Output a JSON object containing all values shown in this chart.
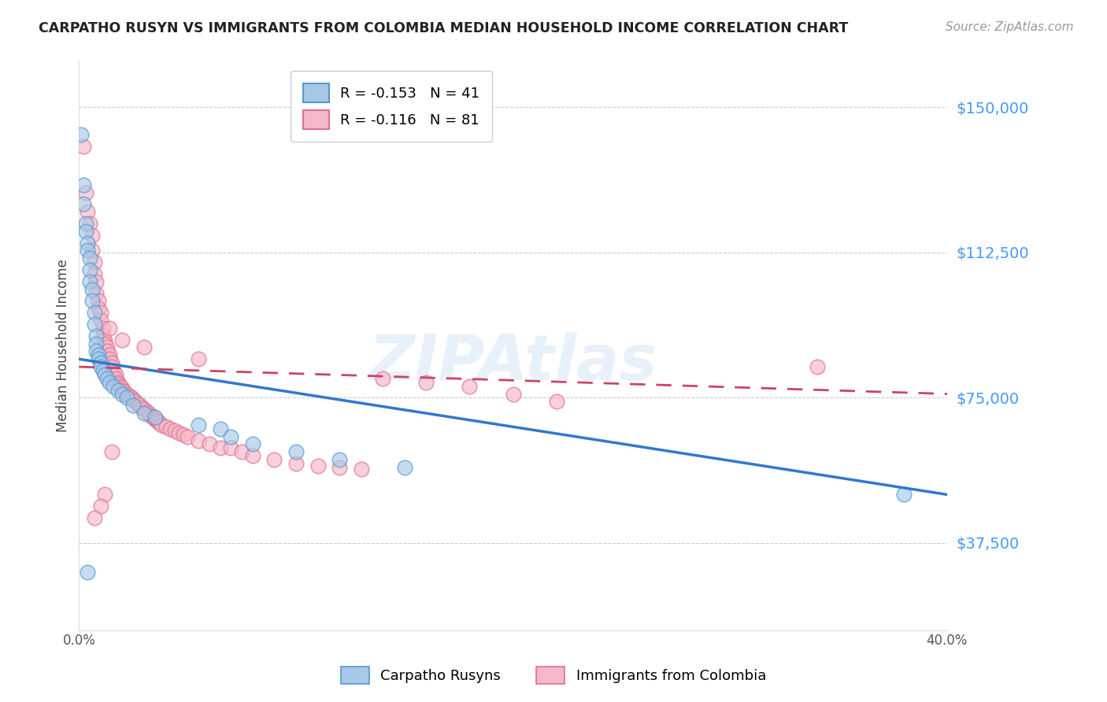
{
  "title": "CARPATHO RUSYN VS IMMIGRANTS FROM COLOMBIA MEDIAN HOUSEHOLD INCOME CORRELATION CHART",
  "source": "Source: ZipAtlas.com",
  "ylabel": "Median Household Income",
  "y_ticks": [
    37500,
    75000,
    112500,
    150000
  ],
  "y_tick_labels": [
    "$37,500",
    "$75,000",
    "$112,500",
    "$150,000"
  ],
  "x_min": 0.0,
  "x_max": 0.4,
  "y_min": 15000,
  "y_max": 162000,
  "series1_label": "Carpatho Rusyns",
  "series2_label": "Immigrants from Colombia",
  "series1_color": "#a8c8e8",
  "series2_color": "#f5b8c8",
  "series1_edge_color": "#5599cc",
  "series2_edge_color": "#e07090",
  "trendline1_color": "#3377cc",
  "trendline2_color": "#cc4466",
  "watermark": "ZIPAtlas",
  "background_color": "#ffffff",
  "legend1_label": "R = -0.153   N = 41",
  "legend2_label": "R = -0.116   N = 81",
  "trendline1_x": [
    0.0,
    0.4
  ],
  "trendline1_y": [
    85000,
    50000
  ],
  "trendline2_x": [
    0.0,
    0.4
  ],
  "trendline2_y": [
    83000,
    76000
  ],
  "series1_x": [
    0.001,
    0.002,
    0.002,
    0.003,
    0.003,
    0.004,
    0.004,
    0.005,
    0.005,
    0.005,
    0.006,
    0.006,
    0.007,
    0.007,
    0.008,
    0.008,
    0.008,
    0.009,
    0.009,
    0.01,
    0.01,
    0.011,
    0.012,
    0.013,
    0.014,
    0.016,
    0.018,
    0.02,
    0.022,
    0.025,
    0.03,
    0.035,
    0.055,
    0.065,
    0.07,
    0.08,
    0.1,
    0.12,
    0.15,
    0.38,
    0.004
  ],
  "series1_y": [
    143000,
    130000,
    125000,
    120000,
    118000,
    115000,
    113000,
    111000,
    108000,
    105000,
    103000,
    100000,
    97000,
    94000,
    91000,
    89000,
    87000,
    86000,
    85000,
    84000,
    83000,
    82000,
    81000,
    80000,
    79000,
    78000,
    77000,
    76000,
    75000,
    73000,
    71000,
    70000,
    68000,
    67000,
    65000,
    63000,
    61000,
    59000,
    57000,
    50000,
    30000
  ],
  "series2_x": [
    0.002,
    0.003,
    0.004,
    0.005,
    0.006,
    0.006,
    0.007,
    0.007,
    0.008,
    0.008,
    0.009,
    0.009,
    0.01,
    0.01,
    0.011,
    0.011,
    0.012,
    0.012,
    0.013,
    0.013,
    0.014,
    0.014,
    0.015,
    0.015,
    0.016,
    0.017,
    0.017,
    0.018,
    0.018,
    0.019,
    0.02,
    0.02,
    0.021,
    0.022,
    0.023,
    0.024,
    0.025,
    0.026,
    0.027,
    0.028,
    0.029,
    0.03,
    0.031,
    0.032,
    0.033,
    0.034,
    0.035,
    0.036,
    0.037,
    0.038,
    0.04,
    0.042,
    0.044,
    0.046,
    0.048,
    0.05,
    0.055,
    0.06,
    0.065,
    0.07,
    0.075,
    0.08,
    0.09,
    0.1,
    0.11,
    0.12,
    0.13,
    0.14,
    0.16,
    0.18,
    0.2,
    0.22,
    0.014,
    0.02,
    0.03,
    0.055,
    0.015,
    0.012,
    0.01,
    0.34,
    0.007
  ],
  "series2_y": [
    140000,
    128000,
    123000,
    120000,
    117000,
    113000,
    110000,
    107000,
    105000,
    102000,
    100000,
    98000,
    97000,
    95000,
    93000,
    91000,
    90000,
    89000,
    88000,
    87000,
    86000,
    85000,
    84000,
    83000,
    82000,
    81000,
    80000,
    79000,
    78500,
    78000,
    77500,
    77000,
    76500,
    76000,
    75500,
    75000,
    74500,
    74000,
    73500,
    73000,
    72500,
    72000,
    71500,
    71000,
    70500,
    70000,
    69500,
    69000,
    68500,
    68000,
    67500,
    67000,
    66500,
    66000,
    65500,
    65000,
    64000,
    63000,
    62000,
    62000,
    61000,
    60000,
    59000,
    58000,
    57500,
    57000,
    56500,
    80000,
    79000,
    78000,
    76000,
    74000,
    93000,
    90000,
    88000,
    85000,
    61000,
    50000,
    47000,
    83000,
    44000
  ]
}
